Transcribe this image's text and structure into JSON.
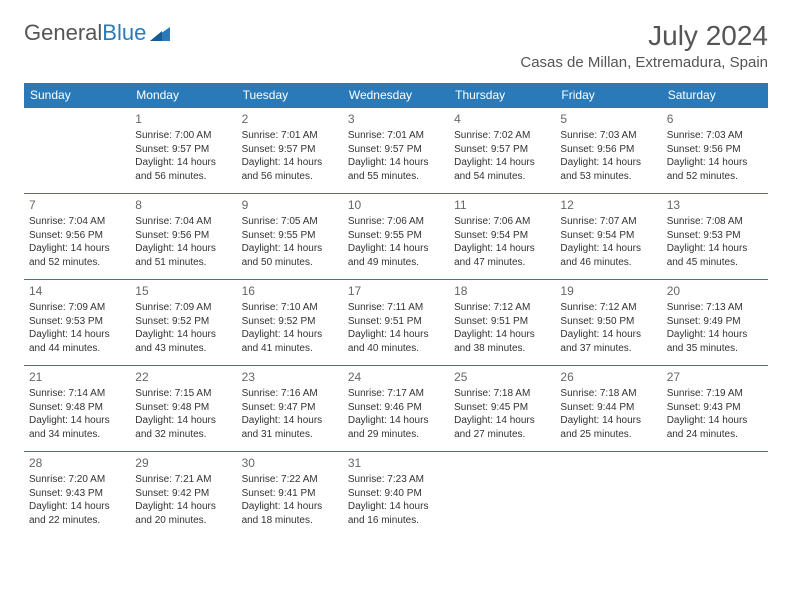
{
  "brand": {
    "general": "General",
    "blue": "Blue"
  },
  "title": "July 2024",
  "location": "Casas de Millan, Extremadura, Spain",
  "colors": {
    "header_bg": "#2a7ab9",
    "header_text": "#ffffff",
    "border": "#2a7ab9",
    "text": "#333333",
    "title_color": "#555555"
  },
  "daysOfWeek": [
    "Sunday",
    "Monday",
    "Tuesday",
    "Wednesday",
    "Thursday",
    "Friday",
    "Saturday"
  ],
  "weeks": [
    [
      null,
      {
        "n": "1",
        "sr": "Sunrise: 7:00 AM",
        "ss": "Sunset: 9:57 PM",
        "d1": "Daylight: 14 hours",
        "d2": "and 56 minutes."
      },
      {
        "n": "2",
        "sr": "Sunrise: 7:01 AM",
        "ss": "Sunset: 9:57 PM",
        "d1": "Daylight: 14 hours",
        "d2": "and 56 minutes."
      },
      {
        "n": "3",
        "sr": "Sunrise: 7:01 AM",
        "ss": "Sunset: 9:57 PM",
        "d1": "Daylight: 14 hours",
        "d2": "and 55 minutes."
      },
      {
        "n": "4",
        "sr": "Sunrise: 7:02 AM",
        "ss": "Sunset: 9:57 PM",
        "d1": "Daylight: 14 hours",
        "d2": "and 54 minutes."
      },
      {
        "n": "5",
        "sr": "Sunrise: 7:03 AM",
        "ss": "Sunset: 9:56 PM",
        "d1": "Daylight: 14 hours",
        "d2": "and 53 minutes."
      },
      {
        "n": "6",
        "sr": "Sunrise: 7:03 AM",
        "ss": "Sunset: 9:56 PM",
        "d1": "Daylight: 14 hours",
        "d2": "and 52 minutes."
      }
    ],
    [
      {
        "n": "7",
        "sr": "Sunrise: 7:04 AM",
        "ss": "Sunset: 9:56 PM",
        "d1": "Daylight: 14 hours",
        "d2": "and 52 minutes."
      },
      {
        "n": "8",
        "sr": "Sunrise: 7:04 AM",
        "ss": "Sunset: 9:56 PM",
        "d1": "Daylight: 14 hours",
        "d2": "and 51 minutes."
      },
      {
        "n": "9",
        "sr": "Sunrise: 7:05 AM",
        "ss": "Sunset: 9:55 PM",
        "d1": "Daylight: 14 hours",
        "d2": "and 50 minutes."
      },
      {
        "n": "10",
        "sr": "Sunrise: 7:06 AM",
        "ss": "Sunset: 9:55 PM",
        "d1": "Daylight: 14 hours",
        "d2": "and 49 minutes."
      },
      {
        "n": "11",
        "sr": "Sunrise: 7:06 AM",
        "ss": "Sunset: 9:54 PM",
        "d1": "Daylight: 14 hours",
        "d2": "and 47 minutes."
      },
      {
        "n": "12",
        "sr": "Sunrise: 7:07 AM",
        "ss": "Sunset: 9:54 PM",
        "d1": "Daylight: 14 hours",
        "d2": "and 46 minutes."
      },
      {
        "n": "13",
        "sr": "Sunrise: 7:08 AM",
        "ss": "Sunset: 9:53 PM",
        "d1": "Daylight: 14 hours",
        "d2": "and 45 minutes."
      }
    ],
    [
      {
        "n": "14",
        "sr": "Sunrise: 7:09 AM",
        "ss": "Sunset: 9:53 PM",
        "d1": "Daylight: 14 hours",
        "d2": "and 44 minutes."
      },
      {
        "n": "15",
        "sr": "Sunrise: 7:09 AM",
        "ss": "Sunset: 9:52 PM",
        "d1": "Daylight: 14 hours",
        "d2": "and 43 minutes."
      },
      {
        "n": "16",
        "sr": "Sunrise: 7:10 AM",
        "ss": "Sunset: 9:52 PM",
        "d1": "Daylight: 14 hours",
        "d2": "and 41 minutes."
      },
      {
        "n": "17",
        "sr": "Sunrise: 7:11 AM",
        "ss": "Sunset: 9:51 PM",
        "d1": "Daylight: 14 hours",
        "d2": "and 40 minutes."
      },
      {
        "n": "18",
        "sr": "Sunrise: 7:12 AM",
        "ss": "Sunset: 9:51 PM",
        "d1": "Daylight: 14 hours",
        "d2": "and 38 minutes."
      },
      {
        "n": "19",
        "sr": "Sunrise: 7:12 AM",
        "ss": "Sunset: 9:50 PM",
        "d1": "Daylight: 14 hours",
        "d2": "and 37 minutes."
      },
      {
        "n": "20",
        "sr": "Sunrise: 7:13 AM",
        "ss": "Sunset: 9:49 PM",
        "d1": "Daylight: 14 hours",
        "d2": "and 35 minutes."
      }
    ],
    [
      {
        "n": "21",
        "sr": "Sunrise: 7:14 AM",
        "ss": "Sunset: 9:48 PM",
        "d1": "Daylight: 14 hours",
        "d2": "and 34 minutes."
      },
      {
        "n": "22",
        "sr": "Sunrise: 7:15 AM",
        "ss": "Sunset: 9:48 PM",
        "d1": "Daylight: 14 hours",
        "d2": "and 32 minutes."
      },
      {
        "n": "23",
        "sr": "Sunrise: 7:16 AM",
        "ss": "Sunset: 9:47 PM",
        "d1": "Daylight: 14 hours",
        "d2": "and 31 minutes."
      },
      {
        "n": "24",
        "sr": "Sunrise: 7:17 AM",
        "ss": "Sunset: 9:46 PM",
        "d1": "Daylight: 14 hours",
        "d2": "and 29 minutes."
      },
      {
        "n": "25",
        "sr": "Sunrise: 7:18 AM",
        "ss": "Sunset: 9:45 PM",
        "d1": "Daylight: 14 hours",
        "d2": "and 27 minutes."
      },
      {
        "n": "26",
        "sr": "Sunrise: 7:18 AM",
        "ss": "Sunset: 9:44 PM",
        "d1": "Daylight: 14 hours",
        "d2": "and 25 minutes."
      },
      {
        "n": "27",
        "sr": "Sunrise: 7:19 AM",
        "ss": "Sunset: 9:43 PM",
        "d1": "Daylight: 14 hours",
        "d2": "and 24 minutes."
      }
    ],
    [
      {
        "n": "28",
        "sr": "Sunrise: 7:20 AM",
        "ss": "Sunset: 9:43 PM",
        "d1": "Daylight: 14 hours",
        "d2": "and 22 minutes."
      },
      {
        "n": "29",
        "sr": "Sunrise: 7:21 AM",
        "ss": "Sunset: 9:42 PM",
        "d1": "Daylight: 14 hours",
        "d2": "and 20 minutes."
      },
      {
        "n": "30",
        "sr": "Sunrise: 7:22 AM",
        "ss": "Sunset: 9:41 PM",
        "d1": "Daylight: 14 hours",
        "d2": "and 18 minutes."
      },
      {
        "n": "31",
        "sr": "Sunrise: 7:23 AM",
        "ss": "Sunset: 9:40 PM",
        "d1": "Daylight: 14 hours",
        "d2": "and 16 minutes."
      },
      null,
      null,
      null
    ]
  ]
}
